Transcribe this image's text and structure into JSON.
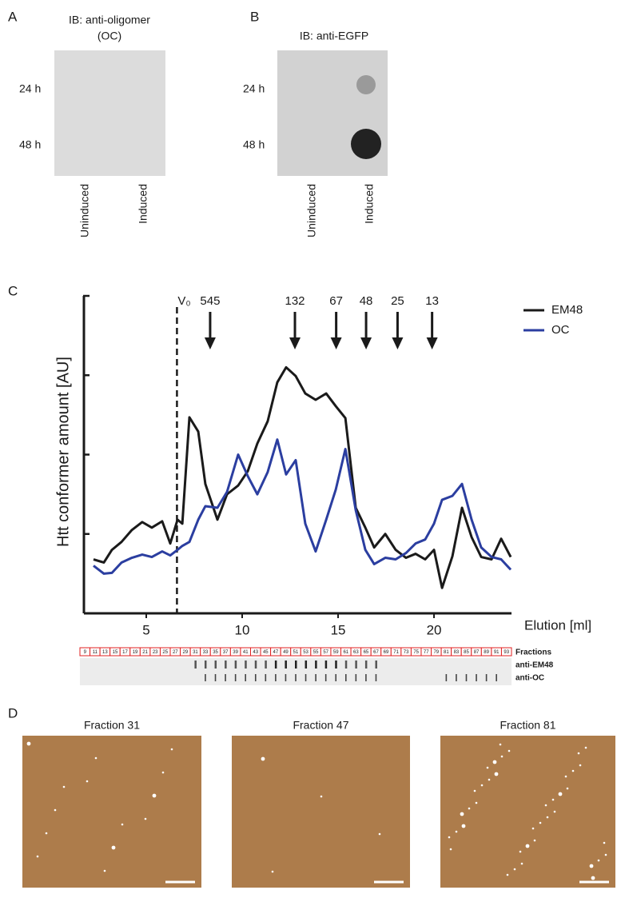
{
  "panels": {
    "A": {
      "letter": "A",
      "title_lines": [
        "IB: anti-oligomer",
        "(OC)"
      ],
      "rows": [
        "24 h",
        "48 h"
      ],
      "columns": [
        "Uninduced",
        "Induced"
      ]
    },
    "B": {
      "letter": "B",
      "title_lines": [
        "IB: anti-EGFP"
      ],
      "rows": [
        "24 h",
        "48 h"
      ],
      "columns": [
        "Uninduced",
        "Induced"
      ]
    },
    "D": {
      "letter": "D",
      "images": [
        "Fraction 31",
        "Fraction 47",
        "Fraction 81"
      ]
    }
  },
  "chart_data": {
    "type": "line",
    "letter": "C",
    "y_label": "Htt conformer amount [AU]",
    "x_label": "Elution [ml]",
    "x": [
      2.25,
      2.79,
      3.21,
      3.71,
      4.25,
      4.79,
      5.29,
      5.83,
      6.25,
      6.63,
      6.88,
      7.25,
      7.71,
      8.08,
      8.71,
      9.21,
      9.79,
      10.29,
      10.79,
      11.33,
      11.83,
      12.29,
      12.79,
      13.29,
      13.83,
      14.38,
      14.88,
      15.38,
      15.92,
      16.42,
      16.88,
      17.46,
      18.0,
      18.54,
      19.04,
      19.54,
      20.0,
      20.42,
      20.96,
      21.46,
      21.96,
      22.46,
      23.0,
      23.5,
      24.0
    ],
    "series": [
      {
        "name": "EM48",
        "color": "#1a1a1a",
        "values": [
          0.68,
          0.64,
          0.8,
          0.9,
          1.05,
          1.15,
          1.08,
          1.16,
          0.88,
          1.18,
          1.13,
          2.47,
          2.29,
          1.63,
          1.18,
          1.5,
          1.61,
          1.79,
          2.14,
          2.42,
          2.91,
          3.1,
          2.99,
          2.77,
          2.69,
          2.77,
          2.61,
          2.46,
          1.33,
          1.08,
          0.83,
          1.0,
          0.8,
          0.7,
          0.75,
          0.68,
          0.8,
          0.32,
          0.72,
          1.33,
          0.96,
          0.71,
          0.68,
          0.94,
          0.71
        ]
      },
      {
        "name": "OC",
        "color": "#2b3ea0",
        "values": [
          0.6,
          0.5,
          0.51,
          0.64,
          0.7,
          0.74,
          0.71,
          0.78,
          0.73,
          0.8,
          0.85,
          0.9,
          1.18,
          1.35,
          1.33,
          1.53,
          2.0,
          1.73,
          1.5,
          1.78,
          2.19,
          1.75,
          1.93,
          1.13,
          0.78,
          1.18,
          1.56,
          2.07,
          1.3,
          0.8,
          0.62,
          0.7,
          0.68,
          0.76,
          0.88,
          0.93,
          1.13,
          1.43,
          1.48,
          1.63,
          1.18,
          0.83,
          0.71,
          0.68,
          0.55
        ]
      }
    ],
    "xlim": [
      1.75,
      24.04
    ],
    "ylim": [
      0,
      4
    ],
    "xticks": [
      5,
      10,
      15,
      20
    ],
    "yticks": [
      1,
      2,
      3,
      4
    ],
    "v0": {
      "label": "V₀",
      "x": 6.6
    },
    "markers": [
      {
        "label": "545",
        "x": 8.33
      },
      {
        "label": "132",
        "x": 12.75
      },
      {
        "label": "67",
        "x": 14.9
      },
      {
        "label": "48",
        "x": 16.46
      },
      {
        "label": "25",
        "x": 18.1
      },
      {
        "label": "13",
        "x": 19.9
      }
    ],
    "legend": "top-right",
    "strip": {
      "fractions": [
        9,
        11,
        13,
        15,
        17,
        19,
        21,
        23,
        25,
        27,
        29,
        31,
        33,
        35,
        37,
        39,
        41,
        43,
        45,
        47,
        49,
        51,
        53,
        55,
        57,
        59,
        61,
        63,
        65,
        67,
        69,
        71,
        73,
        75,
        77,
        79,
        81,
        83,
        85,
        87,
        89,
        91,
        93
      ],
      "row_labels": [
        "Fractions",
        "anti-EM48",
        "anti-OC"
      ]
    }
  }
}
